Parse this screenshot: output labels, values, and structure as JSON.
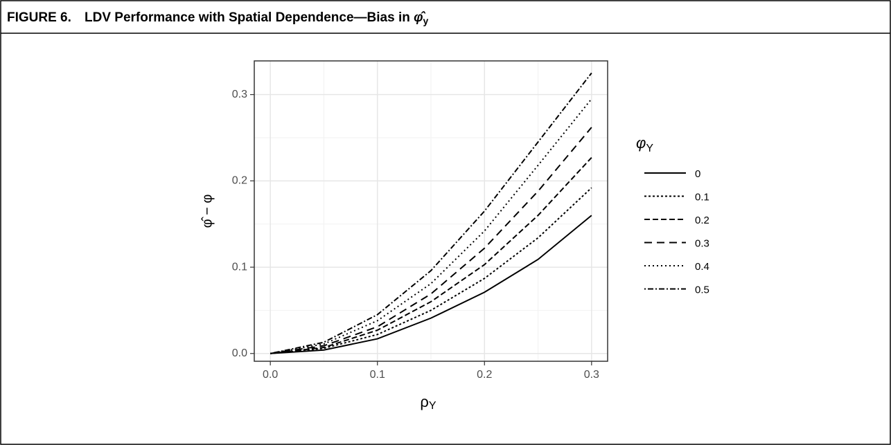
{
  "chart_data": {
    "type": "line",
    "figure_label": "FIGURE 6.",
    "title": "LDV Performance with Spatial Dependence—Bias in ",
    "title_symbol": "φ̂",
    "title_symbol_sub": "y",
    "x_label": "ρ",
    "x_label_sub": "Y",
    "y_label": "φ̂ − φ",
    "legend_title": "φ",
    "legend_title_sub": "Y",
    "legend": "right",
    "grid": true,
    "x": [
      0,
      0.05,
      0.1,
      0.15,
      0.2,
      0.25,
      0.3
    ],
    "xlim": [
      -0.015,
      0.315
    ],
    "ylim": [
      -0.009,
      0.339
    ],
    "xticks": [
      {
        "value": 0,
        "label": "0.0"
      },
      0.1,
      0.2,
      0.3
    ],
    "yticks": [
      {
        "value": 0,
        "label": "0.0"
      },
      0.1,
      0.2,
      0.3
    ],
    "minor_xticks": [
      0.05,
      0.15,
      0.25
    ],
    "minor_yticks": [
      0.05,
      0.15,
      0.25
    ],
    "series": [
      {
        "name": "0",
        "color": "#000000",
        "dash": "none",
        "values": [
          0,
          0.004,
          0.017,
          0.041,
          0.071,
          0.109,
          0.16
        ]
      },
      {
        "name": "0.1",
        "color": "#000000",
        "dash": "3,3",
        "values": [
          0,
          0.006,
          0.022,
          0.05,
          0.087,
          0.134,
          0.192
        ]
      },
      {
        "name": "0.2",
        "color": "#000000",
        "dash": "8,4",
        "values": [
          0,
          0.007,
          0.027,
          0.06,
          0.103,
          0.16,
          0.227
        ]
      },
      {
        "name": "0.3",
        "color": "#000000",
        "dash": "11,7",
        "values": [
          0,
          0.009,
          0.031,
          0.069,
          0.122,
          0.188,
          0.262
        ]
      },
      {
        "name": "0.4",
        "color": "#000000",
        "dash": "2,4",
        "values": [
          0,
          0.011,
          0.038,
          0.081,
          0.142,
          0.218,
          0.295
        ]
      },
      {
        "name": "0.5",
        "color": "#000000",
        "dash": "2,3,8,3",
        "values": [
          0,
          0.013,
          0.045,
          0.096,
          0.165,
          0.245,
          0.325
        ]
      }
    ]
  }
}
